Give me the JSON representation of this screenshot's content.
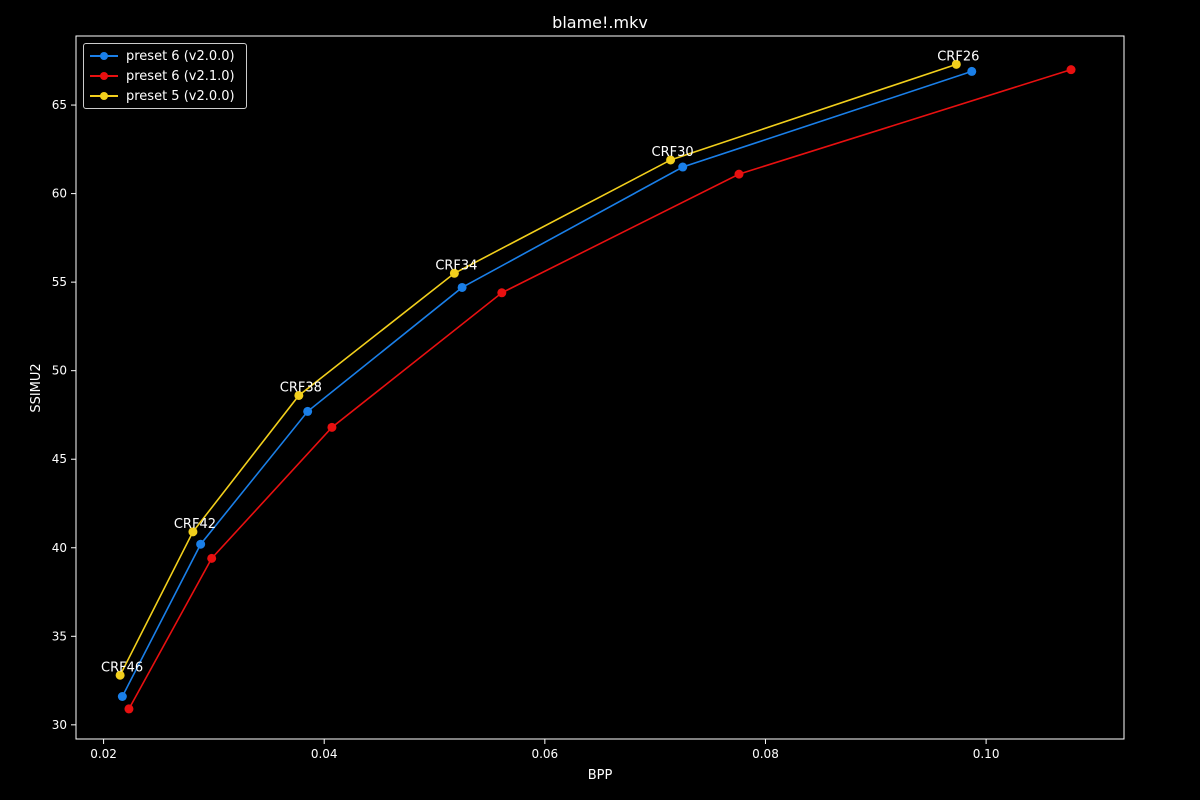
{
  "chart_data": {
    "type": "line",
    "title": "blame!.mkv",
    "xlabel": "BPP",
    "ylabel": "SSIMU2",
    "xlim": [
      0.0175,
      0.1125
    ],
    "ylim": [
      29.2,
      68.9
    ],
    "xticks": [
      0.02,
      0.04,
      0.06,
      0.08,
      0.1
    ],
    "xtick_labels": [
      "0.02",
      "0.04",
      "0.06",
      "0.08",
      "0.10"
    ],
    "yticks": [
      30,
      35,
      40,
      45,
      50,
      55,
      60,
      65
    ],
    "ytick_labels": [
      "30",
      "35",
      "40",
      "45",
      "50",
      "55",
      "60",
      "65"
    ],
    "grid": false,
    "legend_position": "top-left",
    "series": [
      {
        "name": "preset 6 (v2.0.0)",
        "color": "#1a7fe8",
        "x": [
          0.0217,
          0.0288,
          0.0385,
          0.0525,
          0.0725,
          0.0987
        ],
        "y": [
          31.6,
          40.2,
          47.7,
          54.7,
          61.5,
          66.9
        ]
      },
      {
        "name": "preset 6 (v2.1.0)",
        "color": "#e81010",
        "x": [
          0.0223,
          0.0298,
          0.0407,
          0.0561,
          0.0776,
          0.1077
        ],
        "y": [
          30.9,
          39.4,
          46.8,
          54.4,
          61.1,
          67.0
        ]
      },
      {
        "name": "preset 5 (v2.0.0)",
        "color": "#f2cf1c",
        "x": [
          0.0215,
          0.0281,
          0.0377,
          0.0518,
          0.0714,
          0.0973
        ],
        "y": [
          32.8,
          40.9,
          48.6,
          55.5,
          61.9,
          67.3
        ]
      }
    ],
    "annotations": [
      {
        "text": "CRF46",
        "x": 0.0215,
        "y": 32.8
      },
      {
        "text": "CRF42",
        "x": 0.0281,
        "y": 40.9
      },
      {
        "text": "CRF38",
        "x": 0.0377,
        "y": 48.6
      },
      {
        "text": "CRF34",
        "x": 0.0518,
        "y": 55.5
      },
      {
        "text": "CRF30",
        "x": 0.0714,
        "y": 61.9
      },
      {
        "text": "CRF26",
        "x": 0.0973,
        "y": 67.3
      }
    ]
  }
}
